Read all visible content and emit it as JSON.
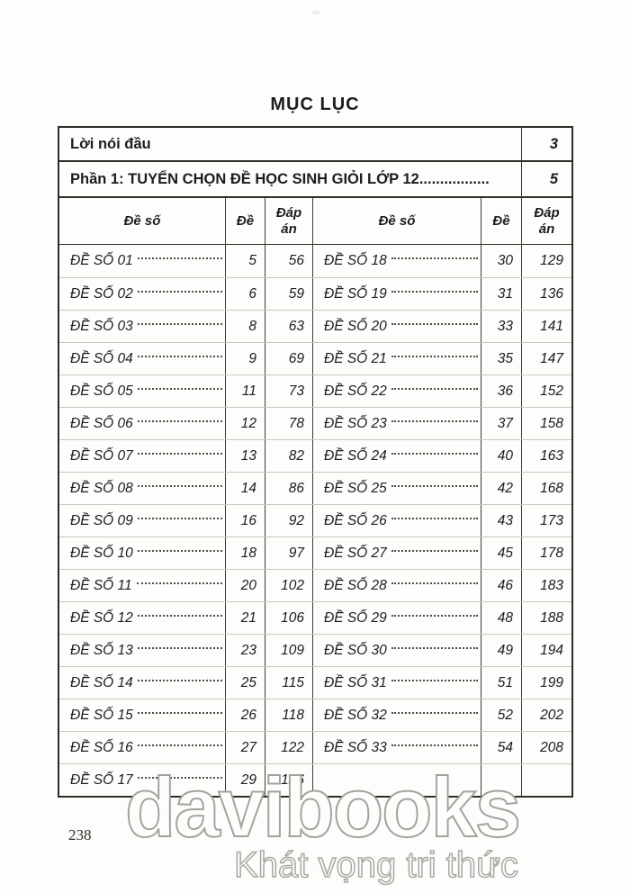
{
  "title": "MỤC LỤC",
  "page_number": "238",
  "table": {
    "intro_rows": [
      {
        "label": "Lời nói đầu",
        "page": "3"
      },
      {
        "label": "Phần 1: TUYỂN CHỌN ĐỀ HỌC SINH GIỎI LỚP 12.................",
        "page": "5"
      }
    ],
    "column_headers": {
      "topic": "Đề số",
      "exam_page": "Đề",
      "answer_page": "Đáp án"
    },
    "left_rows": [
      {
        "label": "ĐỀ SỐ 01",
        "de": "5",
        "dap_an": "56"
      },
      {
        "label": "ĐỀ SỐ 02",
        "de": "6",
        "dap_an": "59"
      },
      {
        "label": "ĐỀ SỐ 03",
        "de": "8",
        "dap_an": "63"
      },
      {
        "label": "ĐỀ SỐ 04",
        "de": "9",
        "dap_an": "69"
      },
      {
        "label": "ĐỀ SỐ 05",
        "de": "11",
        "dap_an": "73"
      },
      {
        "label": "ĐỀ SỐ 06",
        "de": "12",
        "dap_an": "78"
      },
      {
        "label": "ĐỀ SỐ 07",
        "de": "13",
        "dap_an": "82"
      },
      {
        "label": "ĐỀ SỐ 08",
        "de": "14",
        "dap_an": "86"
      },
      {
        "label": "ĐỀ SỐ 09",
        "de": "16",
        "dap_an": "92"
      },
      {
        "label": "ĐỀ SỐ 10",
        "de": "18",
        "dap_an": "97"
      },
      {
        "label": "ĐỀ SỐ 11",
        "de": "20",
        "dap_an": "102"
      },
      {
        "label": "ĐỀ SỐ 12",
        "de": "21",
        "dap_an": "106"
      },
      {
        "label": "ĐỀ SỐ 13",
        "de": "23",
        "dap_an": "109"
      },
      {
        "label": "ĐỀ SỐ 14",
        "de": "25",
        "dap_an": "115"
      },
      {
        "label": "ĐỀ SỐ 15",
        "de": "26",
        "dap_an": "118"
      },
      {
        "label": "ĐỀ SỐ 16",
        "de": "27",
        "dap_an": "122"
      },
      {
        "label": "ĐỀ SỐ 17",
        "de": "29",
        "dap_an": "126"
      }
    ],
    "right_rows": [
      {
        "label": "ĐỀ SỐ 18",
        "de": "30",
        "dap_an": "129"
      },
      {
        "label": "ĐỀ SỐ 19",
        "de": "31",
        "dap_an": "136"
      },
      {
        "label": "ĐỀ SỐ 20",
        "de": "33",
        "dap_an": "141"
      },
      {
        "label": "ĐỀ SỐ 21",
        "de": "35",
        "dap_an": "147"
      },
      {
        "label": "ĐỀ SỐ 22",
        "de": "36",
        "dap_an": "152"
      },
      {
        "label": "ĐỀ SỐ 23",
        "de": "37",
        "dap_an": "158"
      },
      {
        "label": "ĐỀ SỐ 24",
        "de": "40",
        "dap_an": "163"
      },
      {
        "label": "ĐỀ SỐ 25",
        "de": "42",
        "dap_an": "168"
      },
      {
        "label": "ĐỀ SỐ 26",
        "de": "43",
        "dap_an": "173"
      },
      {
        "label": "ĐỀ SỐ 27",
        "de": "45",
        "dap_an": "178"
      },
      {
        "label": "ĐỀ SỐ 28",
        "de": "46",
        "dap_an": "183"
      },
      {
        "label": "ĐỀ SỐ 29",
        "de": "48",
        "dap_an": "188"
      },
      {
        "label": "ĐỀ SỐ 30",
        "de": "49",
        "dap_an": "194"
      },
      {
        "label": "ĐỀ SỐ 31",
        "de": "51",
        "dap_an": "199"
      },
      {
        "label": "ĐỀ SỐ 32",
        "de": "52",
        "dap_an": "202"
      },
      {
        "label": "ĐỀ SỐ 33",
        "de": "54",
        "dap_an": "208"
      }
    ]
  },
  "watermark": {
    "line1": "davibooks",
    "line2": "Khát vọng tri thức"
  }
}
